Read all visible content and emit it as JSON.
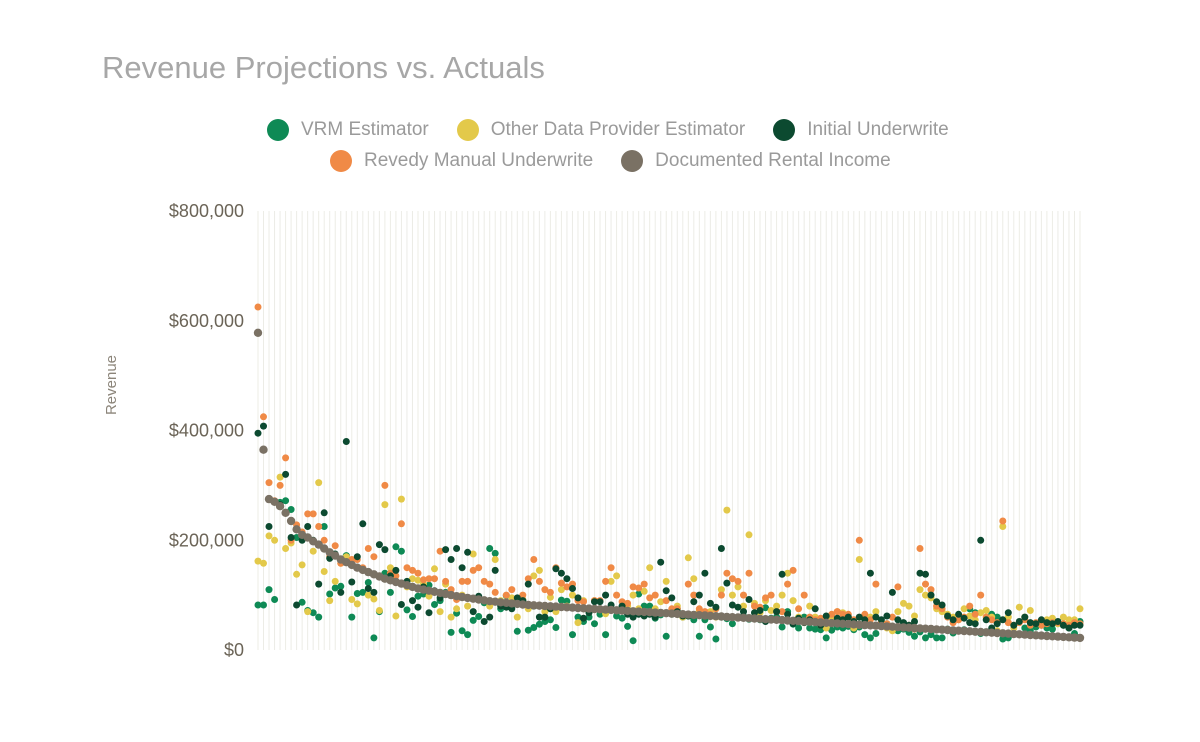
{
  "chart_data": {
    "type": "scatter",
    "title": "Revenue Projections vs. Actuals",
    "ylabel": "Revenue",
    "ylim": [
      0,
      800000
    ],
    "yticks": [
      "$0",
      "$200,000",
      "$400,000",
      "$600,000",
      "$800,000"
    ],
    "yticks_values": [
      0,
      200000,
      400000,
      600000,
      800000
    ],
    "x_count": 150,
    "grid": "vertical",
    "legend": "top",
    "series": [
      {
        "name": "VRM Estimator",
        "color": "#0e8a55",
        "values": [
          82000,
          82000,
          110000,
          92000,
          269000,
          272000,
          256000,
          205000,
          87000,
          72000,
          68000,
          60000,
          225000,
          102000,
          113000,
          116000,
          172000,
          60000,
          103000,
          105000,
          123000,
          22000,
          70000,
          140000,
          105000,
          188000,
          180000,
          73000,
          61000,
          98000,
          102000,
          118000,
          83000,
          90000,
          105000,
          32000,
          67000,
          35000,
          28000,
          54000,
          61000,
          86000,
          185000,
          176000,
          75000,
          99000,
          88000,
          34000,
          90000,
          36000,
          41000,
          47000,
          52000,
          55000,
          41000,
          91000,
          89000,
          28000,
          60000,
          52000,
          60000,
          48000,
          65000,
          28000,
          73000,
          62000,
          58000,
          43000,
          17000,
          102000,
          80000,
          80000,
          58000,
          64000,
          25000,
          65000,
          75000,
          60000,
          62000,
          55000,
          25000,
          55000,
          42000,
          20000,
          60000,
          57000,
          48000,
          60000,
          62000,
          56000,
          60000,
          55000,
          77000,
          58000,
          60000,
          42000,
          70000,
          47000,
          40000,
          60000,
          40000,
          38000,
          37000,
          22000,
          36000,
          42000,
          40000,
          43000,
          37000,
          42000,
          28000,
          22000,
          30000,
          45000,
          48000,
          40000,
          35000,
          38000,
          32000,
          25000,
          33000,
          22000,
          28000,
          22000,
          22000,
          38000,
          31000,
          35000,
          37000,
          75000,
          68000,
          30000,
          32000,
          65000,
          60000,
          20000,
          22000,
          30000,
          28000,
          40000,
          35000,
          42000,
          45000,
          40000,
          38000,
          48000,
          45000,
          40000,
          30000,
          52000
        ]
      },
      {
        "name": "Other Data Provider Estimator",
        "color": "#e3c94a",
        "values": [
          162000,
          158000,
          208000,
          200000,
          315000,
          185000,
          195000,
          138000,
          155000,
          70000,
          180000,
          305000,
          143000,
          90000,
          125000,
          158000,
          170000,
          92000,
          84000,
          148000,
          100000,
          93000,
          72000,
          265000,
          150000,
          62000,
          275000,
          115000,
          130000,
          127000,
          120000,
          98000,
          148000,
          70000,
          120000,
          60000,
          75000,
          100000,
          80000,
          175000,
          95000,
          90000,
          80000,
          165000,
          90000,
          84000,
          95000,
          60000,
          92000,
          75000,
          135000,
          145000,
          70000,
          96000,
          70000,
          110000,
          80000,
          100000,
          50000,
          90000,
          70000,
          90000,
          75000,
          66000,
          125000,
          135000,
          75000,
          80000,
          100000,
          75000,
          107000,
          150000,
          75000,
          88000,
          125000,
          70000,
          80000,
          60000,
          168000,
          130000,
          72000,
          62000,
          70000,
          60000,
          110000,
          255000,
          100000,
          115000,
          80000,
          210000,
          85000,
          68000,
          90000,
          72000,
          80000,
          100000,
          140000,
          90000,
          60000,
          50000,
          80000,
          60000,
          45000,
          40000,
          60000,
          70000,
          68000,
          60000,
          40000,
          165000,
          55000,
          60000,
          70000,
          45000,
          40000,
          35000,
          70000,
          85000,
          80000,
          62000,
          110000,
          100000,
          95000,
          75000,
          70000,
          65000,
          60000,
          55000,
          75000,
          62000,
          55000,
          68000,
          72000,
          60000,
          35000,
          225000,
          60000,
          40000,
          78000,
          60000,
          72000,
          48000,
          50000,
          55000,
          58000,
          48000,
          60000,
          55000,
          55000,
          75000
        ]
      },
      {
        "name": "Initial Underwrite",
        "color": "#0c4a30",
        "values": [
          395000,
          408000,
          225000,
          270000,
          265000,
          320000,
          205000,
          82000,
          200000,
          225000,
          200000,
          120000,
          250000,
          167000,
          175000,
          105000,
          380000,
          124000,
          170000,
          230000,
          112000,
          105000,
          192000,
          183000,
          135000,
          145000,
          83000,
          125000,
          90000,
          78000,
          115000,
          68000,
          108000,
          95000,
          183000,
          165000,
          185000,
          150000,
          178000,
          70000,
          98000,
          52000,
          60000,
          145000,
          80000,
          78000,
          75000,
          95000,
          90000,
          120000,
          80000,
          60000,
          60000,
          75000,
          148000,
          140000,
          130000,
          112000,
          95000,
          58000,
          68000,
          88000,
          88000,
          100000,
          82000,
          72000,
          80000,
          65000,
          60000,
          65000,
          62000,
          65000,
          60000,
          160000,
          108000,
          95000,
          70000,
          62000,
          62000,
          88000,
          100000,
          140000,
          85000,
          78000,
          185000,
          122000,
          82000,
          78000,
          70000,
          92000,
          68000,
          72000,
          52000,
          55000,
          70000,
          138000,
          65000,
          48000,
          58000,
          50000,
          55000,
          75000,
          45000,
          62000,
          48000,
          58000,
          55000,
          60000,
          52000,
          60000,
          55000,
          140000,
          60000,
          55000,
          62000,
          105000,
          55000,
          50000,
          45000,
          52000,
          140000,
          138000,
          100000,
          88000,
          82000,
          62000,
          55000,
          65000,
          58000,
          50000,
          48000,
          200000,
          55000,
          40000,
          48000,
          55000,
          68000,
          45000,
          52000,
          60000,
          50000,
          48000,
          55000,
          50000,
          48000,
          52000,
          45000,
          40000,
          45000,
          45000
        ]
      },
      {
        "name": "Revedy Manual Underwrite",
        "color": "#f08a46",
        "values": [
          625000,
          425000,
          305000,
          272000,
          300000,
          350000,
          200000,
          228000,
          215000,
          248000,
          248000,
          225000,
          200000,
          170000,
          190000,
          158000,
          160000,
          165000,
          165000,
          150000,
          185000,
          170000,
          135000,
          300000,
          140000,
          135000,
          230000,
          150000,
          145000,
          140000,
          128000,
          130000,
          130000,
          180000,
          125000,
          110000,
          92000,
          125000,
          125000,
          145000,
          150000,
          125000,
          120000,
          105000,
          85000,
          100000,
          110000,
          90000,
          100000,
          130000,
          165000,
          125000,
          110000,
          105000,
          150000,
          122000,
          115000,
          120000,
          90000,
          88000,
          75000,
          90000,
          90000,
          125000,
          150000,
          100000,
          88000,
          85000,
          115000,
          113000,
          120000,
          95000,
          100000,
          68000,
          90000,
          75000,
          75000,
          65000,
          120000,
          100000,
          75000,
          70000,
          65000,
          75000,
          100000,
          140000,
          130000,
          125000,
          100000,
          140000,
          80000,
          78000,
          95000,
          100000,
          70000,
          70000,
          120000,
          145000,
          75000,
          100000,
          60000,
          55000,
          58000,
          60000,
          65000,
          70000,
          65000,
          65000,
          55000,
          200000,
          65000,
          55000,
          120000,
          50000,
          48000,
          60000,
          115000,
          40000,
          45000,
          38000,
          185000,
          120000,
          110000,
          80000,
          75000,
          60000,
          50000,
          55000,
          60000,
          80000,
          65000,
          100000,
          60000,
          55000,
          50000,
          235000,
          50000,
          45000,
          50000,
          55000,
          45000,
          50000,
          45000,
          48000,
          50000,
          50000,
          48000,
          45000,
          50000,
          48000
        ]
      },
      {
        "name": "Documented Rental Income",
        "color": "#7a7164",
        "values": [
          578000,
          365000,
          275000,
          270000,
          262000,
          250000,
          235000,
          220000,
          210000,
          205000,
          198000,
          192000,
          185000,
          178000,
          172000,
          165000,
          160000,
          155000,
          150000,
          146000,
          142000,
          138000,
          134000,
          130000,
          127000,
          124000,
          121000,
          118000,
          115000,
          112000,
          110000,
          108000,
          106000,
          104000,
          102000,
          100000,
          98000,
          96500,
          95000,
          93500,
          92000,
          90500,
          89000,
          88000,
          87000,
          86000,
          85000,
          84000,
          83000,
          82200,
          81500,
          80800,
          80200,
          79600,
          79000,
          78400,
          77800,
          77200,
          76600,
          76000,
          75400,
          74800,
          74200,
          73600,
          73000,
          72400,
          71800,
          71200,
          70600,
          70000,
          69400,
          68800,
          68200,
          67600,
          67000,
          66400,
          65800,
          65200,
          64600,
          64000,
          63400,
          62800,
          62200,
          61600,
          61000,
          60400,
          59800,
          59200,
          58600,
          58000,
          57400,
          56800,
          56200,
          55600,
          55000,
          54400,
          53800,
          53200,
          52600,
          52000,
          51400,
          50800,
          50200,
          49600,
          49000,
          48400,
          47800,
          47200,
          46600,
          46000,
          45400,
          44800,
          44200,
          43600,
          43000,
          42400,
          41800,
          41200,
          40600,
          40000,
          39400,
          38800,
          38200,
          37600,
          37000,
          36400,
          35800,
          35200,
          34600,
          34000,
          33400,
          32800,
          32200,
          31600,
          31000,
          30400,
          29800,
          29200,
          28600,
          28000,
          27400,
          26800,
          26200,
          25600,
          25000,
          24400,
          23800,
          23200,
          22600,
          22000
        ]
      }
    ]
  }
}
